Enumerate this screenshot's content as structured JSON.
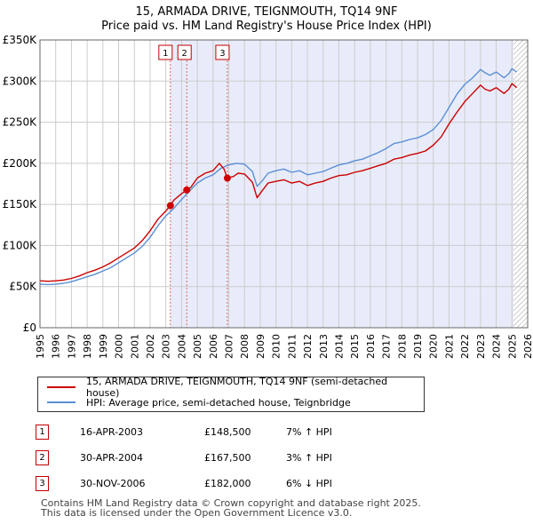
{
  "header": {
    "title_line1": "15, ARMADA DRIVE, TEIGNMOUTH, TQ14 9NF",
    "title_line2": "Price paid vs. HM Land Registry's House Price Index (HPI)"
  },
  "colors": {
    "property": "#cc0000",
    "hpi": "#5b8fd6",
    "shade": "#e8ecfa",
    "grid": "#cccccc",
    "vline": "#e06060"
  },
  "chart_data": {
    "type": "line",
    "title": "15, ARMADA DRIVE, TEIGNMOUTH, TQ14 9NF — Price paid vs. HM Land Registry's House Price Index (HPI)",
    "xlim": [
      1995,
      2026
    ],
    "ylim": [
      0,
      350000
    ],
    "y_ticks": [
      0,
      50000,
      100000,
      150000,
      200000,
      250000,
      300000,
      350000
    ],
    "y_tick_labels": [
      "£0",
      "£50K",
      "£100K",
      "£150K",
      "£200K",
      "£250K",
      "£300K",
      "£350K"
    ],
    "x_ticks": [
      1995,
      1996,
      1997,
      1998,
      1999,
      2000,
      2001,
      2002,
      2003,
      2004,
      2005,
      2006,
      2007,
      2008,
      2009,
      2010,
      2011,
      2012,
      2013,
      2014,
      2015,
      2016,
      2017,
      2018,
      2019,
      2020,
      2021,
      2022,
      2023,
      2024,
      2025,
      2026
    ],
    "x_tick_labels": [
      "1995",
      "1996",
      "1997",
      "1998",
      "1999",
      "2000",
      "2001",
      "2002",
      "2003",
      "2004",
      "2005",
      "2006",
      "2007",
      "2008",
      "2009",
      "2010",
      "2011",
      "2012",
      "2013",
      "2014",
      "2015",
      "2016",
      "2017",
      "2018",
      "2019",
      "2020",
      "2021",
      "2022",
      "2023",
      "2024",
      "2025",
      "2026"
    ],
    "shaded_from": 2003.29,
    "hatched_from": 2025.1,
    "series": [
      {
        "name": "15, ARMADA DRIVE, TEIGNMOUTH, TQ14 9NF (semi-detached house)",
        "color": "#cc0000",
        "x": [
          1995.0,
          1995.5,
          1996.0,
          1996.5,
          1997.0,
          1997.5,
          1998.0,
          1998.5,
          1999.0,
          1999.5,
          2000.0,
          2000.5,
          2001.0,
          2001.5,
          2002.0,
          2002.5,
          2003.0,
          2003.29,
          2003.5,
          2004.0,
          2004.33,
          2004.6,
          2005.0,
          2005.5,
          2006.0,
          2006.4,
          2006.7,
          2006.91,
          2007.3,
          2007.6,
          2008.0,
          2008.5,
          2008.8,
          2009.1,
          2009.5,
          2010.0,
          2010.5,
          2011.0,
          2011.5,
          2012.0,
          2012.5,
          2013.0,
          2013.5,
          2014.0,
          2014.5,
          2015.0,
          2015.5,
          2016.0,
          2016.5,
          2017.0,
          2017.5,
          2018.0,
          2018.5,
          2019.0,
          2019.5,
          2020.0,
          2020.5,
          2021.0,
          2021.5,
          2022.0,
          2022.5,
          2023.0,
          2023.3,
          2023.6,
          2024.0,
          2024.5,
          2024.8,
          2025.0,
          2025.3
        ],
        "y": [
          57000,
          56500,
          57000,
          58000,
          60000,
          63000,
          67000,
          70000,
          74000,
          79000,
          85000,
          91000,
          97000,
          106000,
          118000,
          132000,
          142000,
          148500,
          155000,
          163000,
          167500,
          171000,
          182000,
          188000,
          191000,
          200000,
          193000,
          182000,
          184000,
          188000,
          187000,
          177000,
          158000,
          166000,
          176000,
          178000,
          180000,
          176000,
          178000,
          173000,
          176000,
          178000,
          182000,
          185000,
          186000,
          189000,
          191000,
          194000,
          197000,
          200000,
          205000,
          207000,
          210000,
          212000,
          215000,
          222000,
          232000,
          248000,
          262000,
          275000,
          285000,
          295000,
          290000,
          288000,
          292000,
          285000,
          290000,
          297000,
          292000
        ]
      },
      {
        "name": "HPI: Average price, semi-detached house, Teignbridge",
        "color": "#5b8fd6",
        "x": [
          1995.0,
          1995.5,
          1996.0,
          1996.5,
          1997.0,
          1997.5,
          1998.0,
          1998.5,
          1999.0,
          1999.5,
          2000.0,
          2000.5,
          2001.0,
          2001.5,
          2002.0,
          2002.5,
          2003.0,
          2003.5,
          2004.0,
          2004.5,
          2005.0,
          2005.5,
          2006.0,
          2006.5,
          2007.0,
          2007.5,
          2008.0,
          2008.5,
          2008.8,
          2009.1,
          2009.5,
          2010.0,
          2010.5,
          2011.0,
          2011.5,
          2012.0,
          2012.5,
          2013.0,
          2013.5,
          2014.0,
          2014.5,
          2015.0,
          2015.5,
          2016.0,
          2016.5,
          2017.0,
          2017.5,
          2018.0,
          2018.5,
          2019.0,
          2019.5,
          2020.0,
          2020.5,
          2021.0,
          2021.5,
          2022.0,
          2022.5,
          2023.0,
          2023.3,
          2023.6,
          2024.0,
          2024.5,
          2024.8,
          2025.0,
          2025.3
        ],
        "y": [
          53000,
          52500,
          53000,
          54000,
          56000,
          59000,
          62000,
          65000,
          69000,
          73000,
          79000,
          85000,
          91000,
          99000,
          110000,
          124000,
          136000,
          145000,
          156000,
          166000,
          176000,
          182000,
          186000,
          194000,
          198000,
          200000,
          199000,
          190000,
          172000,
          178000,
          188000,
          191000,
          193000,
          189000,
          191000,
          186000,
          188000,
          190000,
          194000,
          198000,
          200000,
          203000,
          205000,
          209000,
          213000,
          218000,
          224000,
          226000,
          229000,
          231000,
          235000,
          241000,
          252000,
          268000,
          284000,
          296000,
          304000,
          314000,
          310000,
          307000,
          311000,
          304000,
          309000,
          315000,
          311000
        ]
      }
    ],
    "sales": [
      {
        "label": "1",
        "x": 2003.29,
        "y": 148500
      },
      {
        "label": "2",
        "x": 2004.33,
        "y": 167500
      },
      {
        "label": "3",
        "x": 2006.91,
        "y": 182000
      }
    ]
  },
  "legend": {
    "property_label": "15, ARMADA DRIVE, TEIGNMOUTH, TQ14 9NF (semi-detached house)",
    "hpi_label": "HPI: Average price, semi-detached house, Teignbridge"
  },
  "transactions": [
    {
      "num": "1",
      "date": "16-APR-2003",
      "price": "£148,500",
      "hpi": "7% ↑ HPI"
    },
    {
      "num": "2",
      "date": "30-APR-2004",
      "price": "£167,500",
      "hpi": "3% ↑ HPI"
    },
    {
      "num": "3",
      "date": "30-NOV-2006",
      "price": "£182,000",
      "hpi": "6% ↓ HPI"
    }
  ],
  "footer": {
    "line1": "Contains HM Land Registry data © Crown copyright and database right 2025.",
    "line2": "This data is licensed under the Open Government Licence v3.0."
  }
}
